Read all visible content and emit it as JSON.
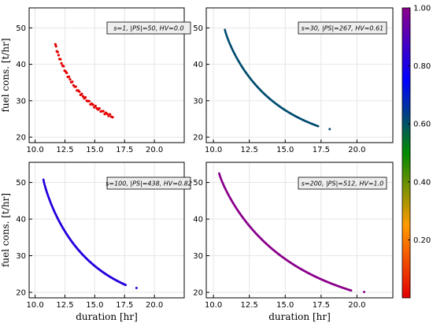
{
  "chart_data": [
    {
      "type": "scatter",
      "annotation": "s=1, |PS|=50, HV=0.0",
      "color_value": 0.0,
      "xlim": [
        9.5,
        22.5
      ],
      "ylim": [
        18.5,
        55.5
      ],
      "x_range": [
        11.7,
        16.5
      ],
      "y_range": [
        45.5,
        25.6
      ],
      "n_points": 50,
      "xlabel": "",
      "ylabel": "fuel cons. [t/hr]"
    },
    {
      "type": "scatter",
      "annotation": "s=30, |PS|=267, HV=0.61",
      "color_value": 0.61,
      "xlim": [
        9.5,
        22.5
      ],
      "ylim": [
        18.5,
        55.5
      ],
      "x_range": [
        10.8,
        17.3
      ],
      "y_range": [
        49.5,
        23.0
      ],
      "extra_point": [
        18.1,
        22.2
      ],
      "n_points": 267,
      "xlabel": "",
      "ylabel": ""
    },
    {
      "type": "scatter",
      "annotation": "s=100, |PS|=438, HV=0.82",
      "color_value": 0.82,
      "xlim": [
        9.5,
        22.5
      ],
      "ylim": [
        18.5,
        55.5
      ],
      "x_range": [
        10.7,
        17.6
      ],
      "y_range": [
        50.8,
        22.0
      ],
      "extra_point": [
        18.5,
        21.2
      ],
      "n_points": 438,
      "xlabel": "duration [hr]",
      "ylabel": "fuel cons. [t/hr]"
    },
    {
      "type": "scatter",
      "annotation": "s=200, |PS|=512, HV=1.0",
      "color_value": 1.0,
      "xlim": [
        9.5,
        22.5
      ],
      "ylim": [
        18.5,
        55.5
      ],
      "x_range": [
        10.4,
        19.6
      ],
      "y_range": [
        52.5,
        20.5
      ],
      "extra_point": [
        20.5,
        20.1
      ],
      "n_points": 512,
      "xlabel": "duration [hr]",
      "ylabel": ""
    }
  ],
  "x_ticks": [
    10.0,
    12.5,
    15.0,
    17.5,
    20.0
  ],
  "x_tick_labels": [
    "10.0",
    "12.5",
    "15.0",
    "17.5",
    "20.0"
  ],
  "y_ticks": [
    20,
    30,
    40,
    50
  ],
  "y_tick_labels": [
    "20",
    "30",
    "40",
    "50"
  ],
  "colorbar": {
    "ticks": [
      0.2,
      0.4,
      0.6,
      0.8,
      1.0
    ],
    "tick_labels": [
      "0.20",
      "0.40",
      "0.60",
      "0.80",
      "1.00"
    ],
    "colors": [
      "#e30000",
      "#ff9a00",
      "#008a00",
      "#0000ff",
      "#8b008b"
    ]
  }
}
